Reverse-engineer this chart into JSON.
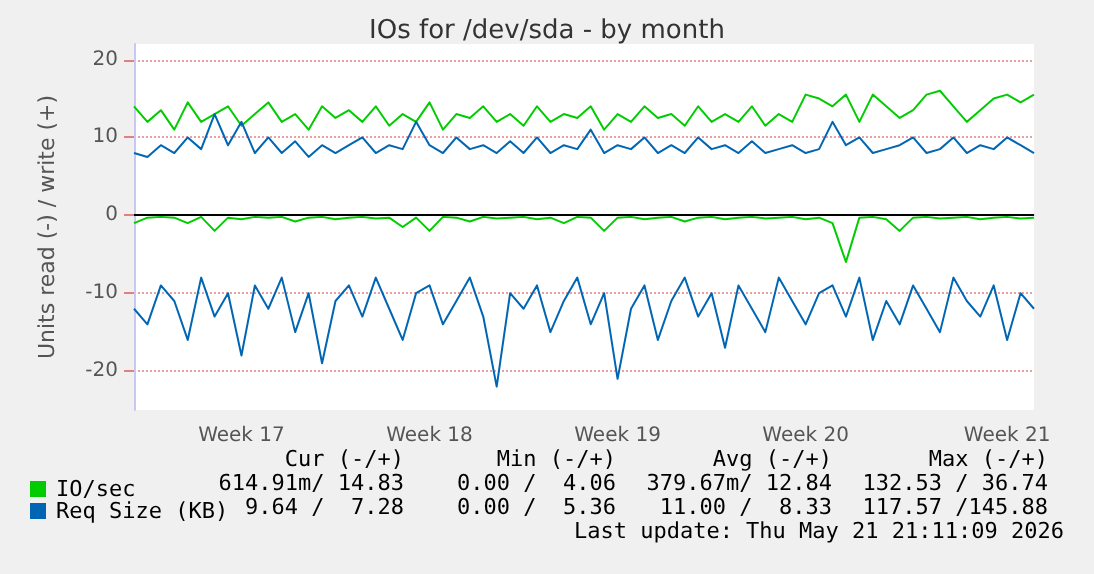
{
  "chart_data": {
    "type": "line",
    "title": "IOs for /dev/sda - by month",
    "ylabel": "Units read (-) / write (+)",
    "categories": [
      null,
      null,
      null,
      null,
      null,
      null,
      null,
      null,
      "Week 17",
      null,
      null,
      null,
      null,
      null,
      null,
      null,
      null,
      null,
      null,
      null,
      null,
      null,
      "Week 18",
      null,
      null,
      null,
      null,
      null,
      null,
      null,
      null,
      null,
      null,
      null,
      null,
      null,
      "Week 19",
      null,
      null,
      null,
      null,
      null,
      null,
      null,
      null,
      null,
      null,
      null,
      null,
      null,
      "Week 20",
      null,
      null,
      null,
      null,
      null,
      null,
      null,
      null,
      null,
      null,
      null,
      null,
      null,
      null,
      "Week 21",
      null,
      null
    ],
    "series": [
      {
        "name": "IO/sec",
        "color": "#00cc00",
        "values": [
          14,
          12,
          13.5,
          11,
          14.5,
          12,
          13,
          14,
          11.5,
          13,
          14.5,
          12,
          13,
          11,
          14,
          12.5,
          13.5,
          12,
          14,
          11.5,
          13,
          12,
          14.5,
          11,
          13,
          12.5,
          14,
          12,
          13,
          11.5,
          14,
          12,
          13,
          12.5,
          14,
          11,
          13,
          12,
          14,
          12.5,
          13,
          11.5,
          14,
          12,
          13,
          12,
          14,
          11.5,
          13,
          12,
          15.5,
          15,
          14,
          15.5,
          12,
          15.5,
          14,
          12.5,
          13.5,
          15.5,
          16,
          14,
          12,
          13.5,
          15,
          15.5,
          14.5,
          15.5
        ]
      },
      {
        "name": "Req Size (KB)",
        "color": "#0066b3",
        "values": [
          8,
          7.5,
          9,
          8,
          10,
          8.5,
          13,
          9,
          12,
          8,
          10,
          8,
          9.5,
          7.5,
          9,
          8,
          9,
          10,
          8,
          9,
          8.5,
          12,
          9,
          8,
          10,
          8.5,
          9,
          8,
          9.5,
          8,
          10,
          8,
          9,
          8.5,
          11,
          8,
          9,
          8.5,
          10,
          8,
          9,
          8,
          10,
          8.5,
          9,
          8,
          9.5,
          8,
          8.5,
          9,
          8,
          8.5,
          12,
          9,
          10,
          8,
          8.5,
          9,
          10,
          8,
          8.5,
          10,
          8,
          9,
          8.5,
          10,
          9,
          8
        ]
      },
      {
        "color": "#00cc00",
        "values": [
          -1,
          -0.3,
          -0.2,
          -0.3,
          -1,
          -0.2,
          -2,
          -0.3,
          -0.5,
          -0.2,
          -0.3,
          -0.2,
          -0.8,
          -0.3,
          -0.2,
          -0.5,
          -0.3,
          -0.2,
          -0.4,
          -0.3,
          -1.5,
          -0.3,
          -2,
          -0.2,
          -0.3,
          -0.8,
          -0.2,
          -0.4,
          -0.3,
          -0.2,
          -0.5,
          -0.3,
          -1,
          -0.2,
          -0.3,
          -2,
          -0.3,
          -0.2,
          -0.5,
          -0.3,
          -0.2,
          -0.8,
          -0.3,
          -0.2,
          -0.5,
          -0.3,
          -0.2,
          -0.4,
          -0.3,
          -0.2,
          -0.5,
          -0.3,
          -1,
          -6,
          -0.3,
          -0.2,
          -0.5,
          -2,
          -0.3,
          -0.2,
          -0.4,
          -0.3,
          -0.2,
          -0.5,
          -0.3,
          -0.2,
          -0.4,
          -0.3
        ]
      },
      {
        "color": "#0066b3",
        "values": [
          -12,
          -14,
          -9,
          -11,
          -16,
          -8,
          -13,
          -10,
          -18,
          -9,
          -12,
          -8,
          -15,
          -10,
          -19,
          -11,
          -9,
          -13,
          -8,
          -12,
          -16,
          -10,
          -9,
          -14,
          -11,
          -8,
          -13,
          -22,
          -10,
          -12,
          -9,
          -15,
          -11,
          -8,
          -14,
          -10,
          -21,
          -12,
          -9,
          -16,
          -11,
          -8,
          -13,
          -10,
          -17,
          -9,
          -12,
          -15,
          -8,
          -11,
          -14,
          -10,
          -9,
          -13,
          -8,
          -16,
          -11,
          -14,
          -9,
          -12,
          -15,
          -8,
          -11,
          -13,
          -9,
          -16,
          -10,
          -12
        ]
      }
    ],
    "ylim": [
      -25,
      22
    ],
    "yticks": [
      -20,
      -10,
      0,
      10,
      20
    ],
    "grid": "y",
    "legend": "bottom left",
    "ref_lines": [
      {
        "axis": "y",
        "value": 0,
        "label": null,
        "color": "#000000"
      }
    ],
    "annotations": [
      "Cur (-/+)",
      "Min (-/+)",
      "Avg (-/+)",
      "Max (-/+)",
      "614.91m/ 14.83",
      "0.00 /  4.06",
      "379.67m/ 12.84",
      "132.53 / 36.74",
      "9.64 /  7.28",
      "0.00 /  5.36",
      "11.00 /  8.33",
      "117.57 /145.88",
      "Last update: Thu May 21 21:11:09 2026"
    ]
  }
}
